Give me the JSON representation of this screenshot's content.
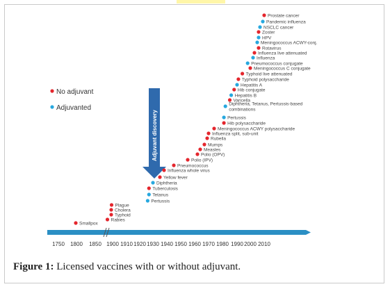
{
  "caption": {
    "label": "Figure 1:",
    "text": " Licensed vaccines with or without adjuvant."
  },
  "colors": {
    "no_adjuvant": "#e4262d",
    "adjuvanted": "#27a8df",
    "arrow": "#2f6aad",
    "timeline": "#2b8fc4"
  },
  "chart_data": {
    "type": "scatter",
    "title": "",
    "xlabel": "",
    "ylabel": "",
    "x_ticks": [
      "1750",
      "1800",
      "1850",
      "1900",
      "1910",
      "1920",
      "1930",
      "1940",
      "1950",
      "1960",
      "1970",
      "1980",
      "1990",
      "2000",
      "2010"
    ],
    "legend": [
      {
        "name": "No adjuvant",
        "color": "#e4262d"
      },
      {
        "name": "Adjuvanted",
        "color": "#27a8df"
      }
    ],
    "annotation": "Adjuvant discovery",
    "series": [
      {
        "name": "No adjuvant",
        "points": [
          {
            "x": 1798,
            "label": "Smallpox"
          },
          {
            "x": 1885,
            "label": "Rabies"
          },
          {
            "x": 1896,
            "label": "Typhoid"
          },
          {
            "x": 1896,
            "label": "Cholera"
          },
          {
            "x": 1897,
            "label": "Plague"
          },
          {
            "x": 1927,
            "label": "Tuberculosis"
          },
          {
            "x": 1935,
            "label": "Yellow fever"
          },
          {
            "x": 1938,
            "label": "Influenza whole virus"
          },
          {
            "x": 1945,
            "label": "Pneumococcus"
          },
          {
            "x": 1955,
            "label": "Polio (IPV)"
          },
          {
            "x": 1962,
            "label": "Polio (OPV)"
          },
          {
            "x": 1964,
            "label": "Measles"
          },
          {
            "x": 1967,
            "label": "Mumps"
          },
          {
            "x": 1969,
            "label": "Rubella"
          },
          {
            "x": 1970,
            "label": "Influenza split, sub-unit"
          },
          {
            "x": 1974,
            "label": "Meningococcus ACWY polysaccharide"
          },
          {
            "x": 1981,
            "label": "Hib polysaccharide"
          },
          {
            "x": 1985,
            "label": "Varicella"
          },
          {
            "x": 1988,
            "label": "Hib conjugate"
          },
          {
            "x": 1991,
            "label": "Typhoid polysaccharide"
          },
          {
            "x": 1994,
            "label": "Typhoid live attenuated"
          },
          {
            "x": 2000,
            "label": "Meningococcus C conjugate"
          },
          {
            "x": 2003,
            "label": "Influenza live attenuated"
          },
          {
            "x": 2006,
            "label": "Rotavirus"
          },
          {
            "x": 2006,
            "label": "Zoster"
          },
          {
            "x": 2010,
            "label": "Prostate cancer"
          }
        ]
      },
      {
        "name": "Adjuvanted",
        "points": [
          {
            "x": 1926,
            "label": "Pertussis"
          },
          {
            "x": 1927,
            "label": "Tetanus"
          },
          {
            "x": 1930,
            "label": "Diphtheria"
          },
          {
            "x": 1981,
            "label": "Pertussis"
          },
          {
            "x": 1982,
            "label": "Diphtheria, Tetanus, Pertussis-based combinations"
          },
          {
            "x": 1986,
            "label": "Hepatitis B"
          },
          {
            "x": 1990,
            "label": "Hepatitis A"
          },
          {
            "x": 1998,
            "label": "Pneumococcus conjugate"
          },
          {
            "x": 2002,
            "label": "Influenza"
          },
          {
            "x": 2005,
            "label": "Meningococcus ACWY-conj."
          },
          {
            "x": 2006,
            "label": "HPV"
          },
          {
            "x": 2007,
            "label": "NSCLC cancer"
          },
          {
            "x": 2009,
            "label": "Pandemic influenza"
          }
        ]
      }
    ]
  }
}
